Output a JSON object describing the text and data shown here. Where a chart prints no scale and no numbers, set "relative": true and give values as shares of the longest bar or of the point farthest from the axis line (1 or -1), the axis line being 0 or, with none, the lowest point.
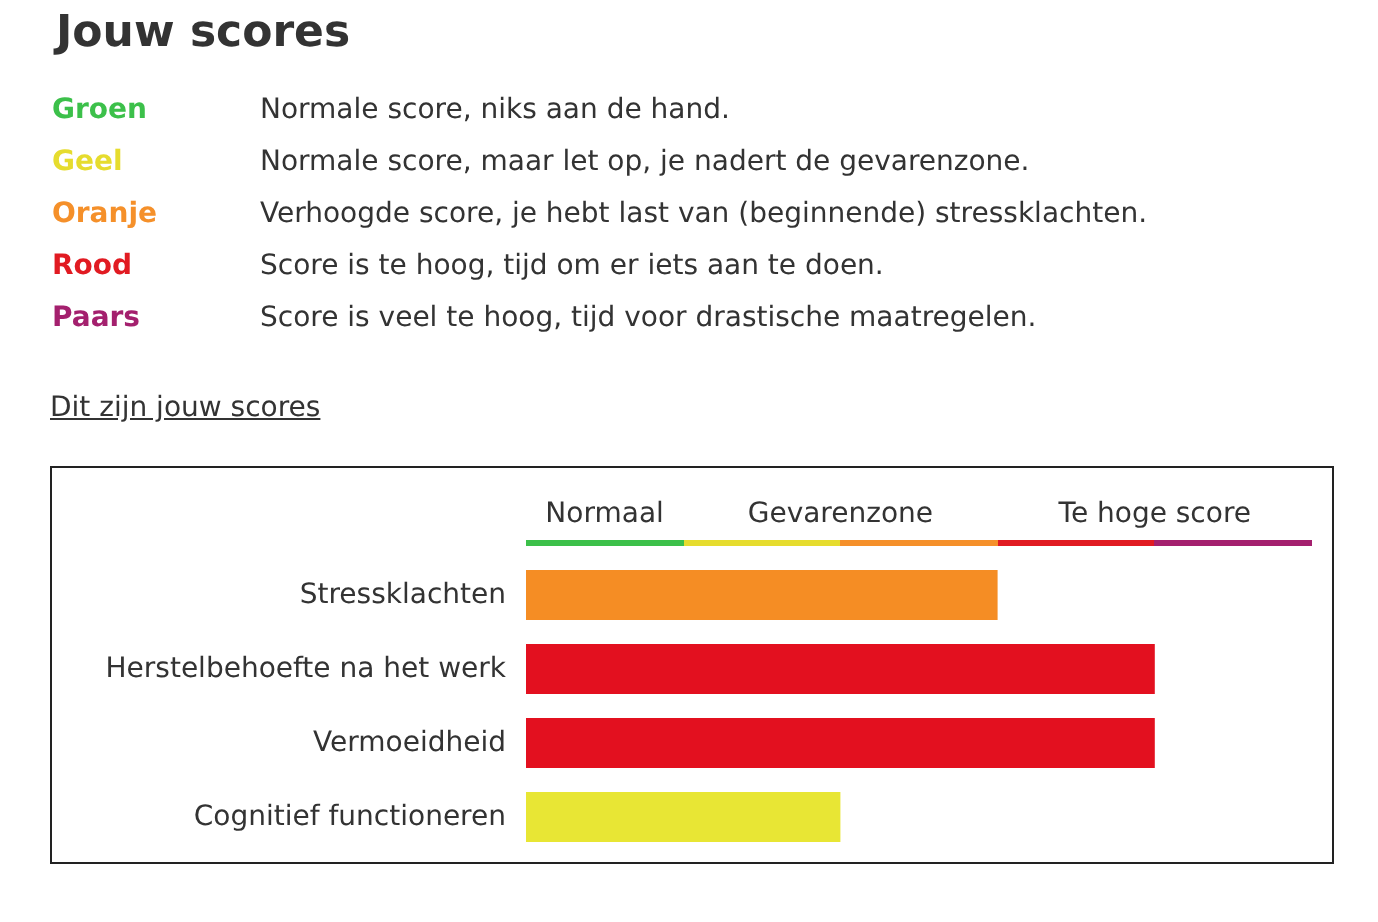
{
  "chart_data": {
    "type": "bar",
    "orientation": "horizontal",
    "relative": true,
    "title": "Jouw scores",
    "subtitle": "Dit zijn jouw scores",
    "categories": [
      "Stressklachten",
      "Herstelbehoefte na het werk",
      "Vermoeidheid",
      "Cognitief functioneren"
    ],
    "values": [
      0.75,
      1,
      1,
      0.5
    ],
    "colors": [
      "#f58d24",
      "#e3101f",
      "#e3101f",
      "#e8e634"
    ],
    "annotations": [
      "Groen",
      "Normale score, niks aan de hand.",
      "Geel",
      "Normale score, maar let op, je nadert de gevarenzone.",
      "Oranje",
      "Verhoogde score, je hebt last van (beginnende) stressklachten.",
      "Rood",
      "Score is te hoog, tijd om er iets aan te doen.",
      "Paars",
      "Score is veel te hoog, tijd voor drastische maatregelen.",
      "Normaal",
      "Gevarenzone",
      "Te hoge score"
    ]
  }
}
